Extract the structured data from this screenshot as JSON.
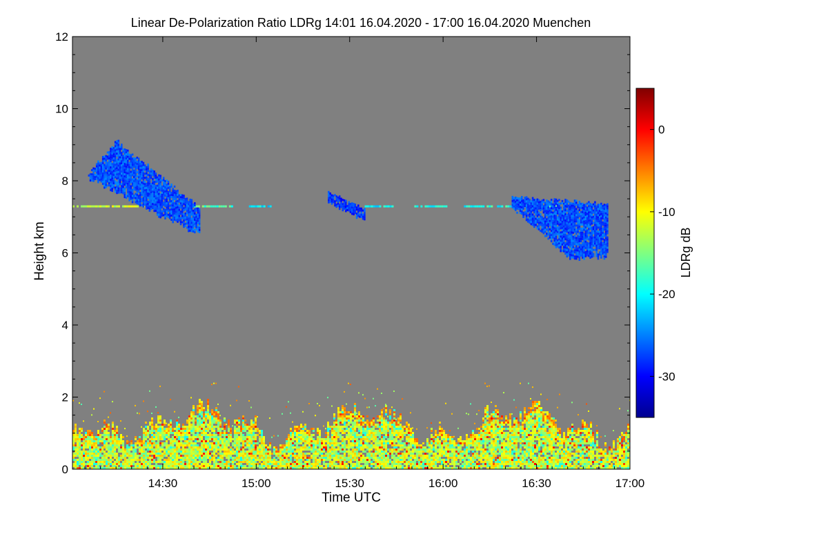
{
  "chart_data": {
    "type": "heatmap",
    "title": "Linear De-Polarization Ratio LDRg   14:01 16.04.2020 - 17:00 16.04.2020 Muenchen",
    "xlabel": "Time UTC",
    "ylabel": "Height km",
    "colorbar_label": "LDRg dB",
    "xlim_minutes_utc": [
      841,
      1020
    ],
    "ylim_km": [
      0,
      12
    ],
    "x_ticks": [
      {
        "minute": 870,
        "label": "14:30"
      },
      {
        "minute": 900,
        "label": "15:00"
      },
      {
        "minute": 930,
        "label": "15:30"
      },
      {
        "minute": 960,
        "label": "16:00"
      },
      {
        "minute": 990,
        "label": "16:30"
      },
      {
        "minute": 1020,
        "label": "17:00"
      }
    ],
    "y_ticks": [
      {
        "value": 0,
        "label": "0"
      },
      {
        "value": 2,
        "label": "2"
      },
      {
        "value": 4,
        "label": "4"
      },
      {
        "value": 6,
        "label": "6"
      },
      {
        "value": 8,
        "label": "8"
      },
      {
        "value": 10,
        "label": "10"
      },
      {
        "value": 12,
        "label": "12"
      }
    ],
    "colorbar_range_db": [
      -35,
      5
    ],
    "colorbar_ticks": [
      {
        "value": 0,
        "label": "0"
      },
      {
        "value": -10,
        "label": "-10"
      },
      {
        "value": -20,
        "label": "-20"
      },
      {
        "value": -30,
        "label": "-30"
      }
    ],
    "colormap": [
      "#00008f",
      "#0000ff",
      "#0080ff",
      "#00ffff",
      "#80ff80",
      "#ffff00",
      "#ff8000",
      "#ff0000",
      "#800000"
    ],
    "no_signal_color": "#808080",
    "features": [
      {
        "name": "cloud-1",
        "time_start": "14:06",
        "time_end": "14:42",
        "base_km": 6.5,
        "top_km": 9.1,
        "ldr_db": -27
      },
      {
        "name": "cloud-2",
        "time_start": "15:23",
        "time_end": "15:35",
        "base_km": 6.9,
        "top_km": 7.7,
        "ldr_db": -28
      },
      {
        "name": "cloud-3",
        "time_start": "16:22",
        "time_end": "16:53",
        "base_km": 5.8,
        "top_km": 7.6,
        "ldr_db": -27
      },
      {
        "name": "layer-7.3km",
        "time_start": "14:01",
        "time_end": "16:58",
        "height_km": 7.3,
        "ldr_db": -20
      },
      {
        "name": "boundary-layer",
        "time_start": "14:01",
        "time_end": "17:00",
        "base_km": 0,
        "top_km": 2.0,
        "ldr_db": -12
      }
    ]
  }
}
